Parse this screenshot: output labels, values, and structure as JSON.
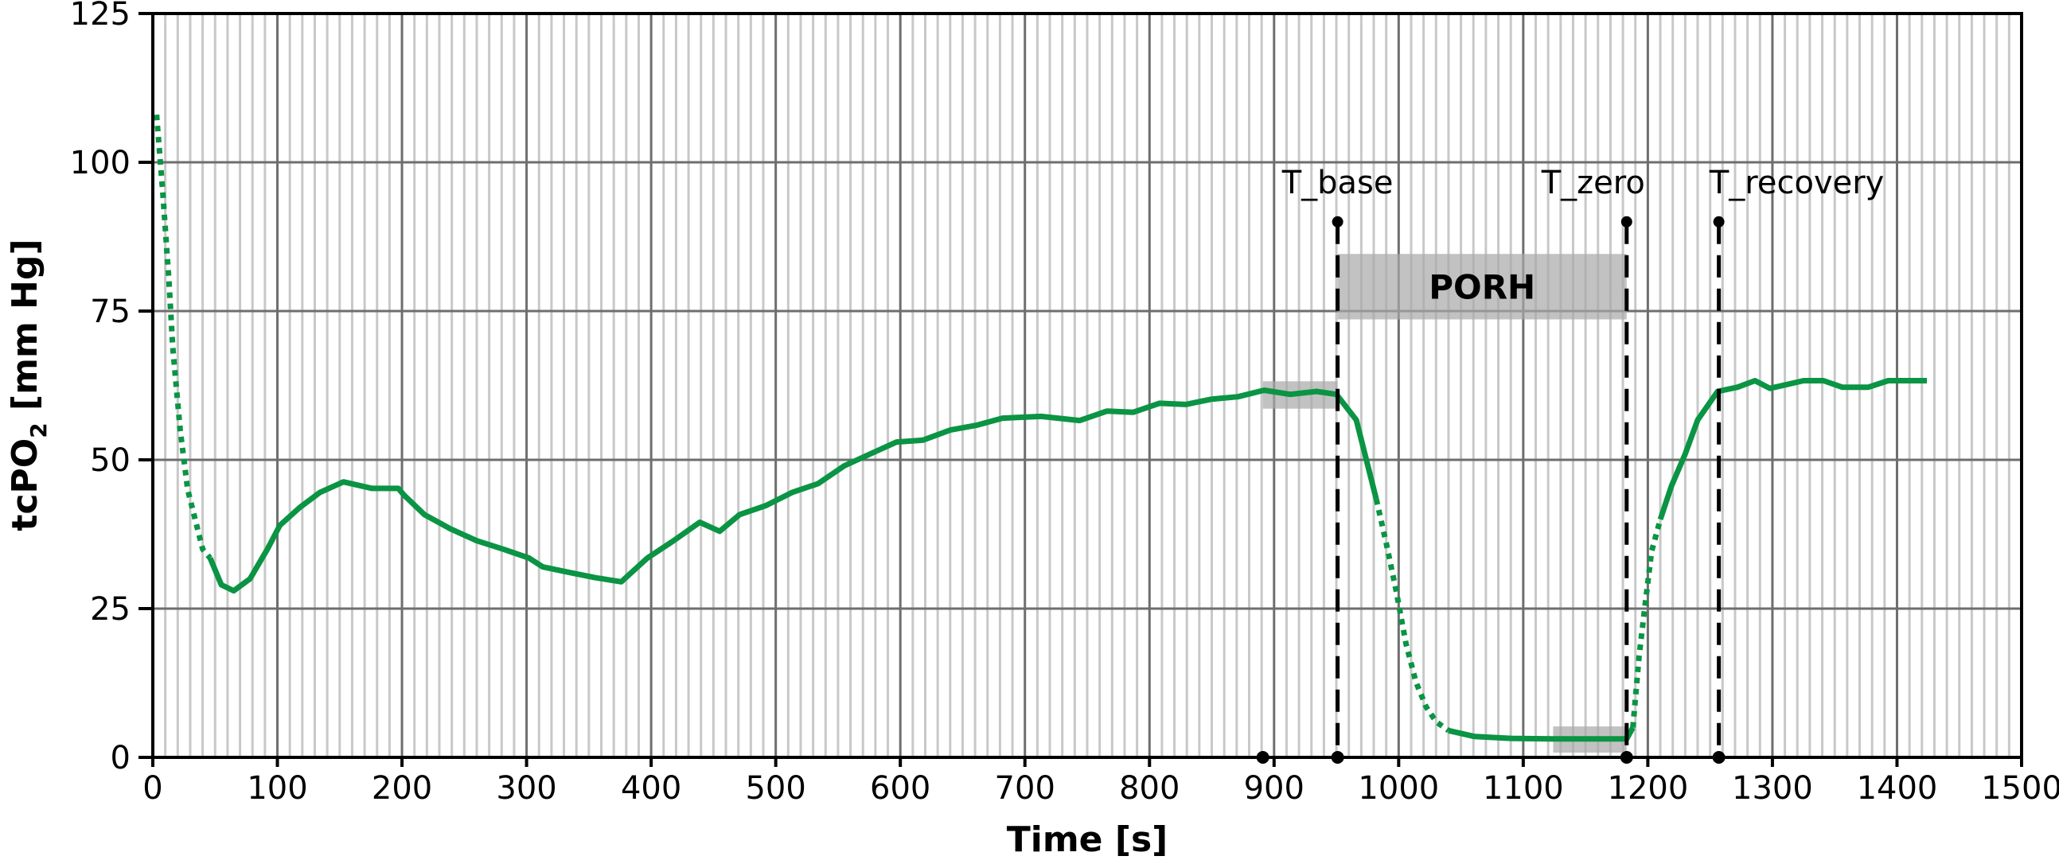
{
  "chart_data": {
    "type": "line",
    "xlabel": "Time [s]",
    "ylabel_parts": [
      "tcPO",
      "2",
      " [mm Hg]"
    ],
    "xlim": [
      0,
      1500
    ],
    "ylim": [
      0,
      125
    ],
    "xticks": [
      0,
      100,
      200,
      300,
      400,
      500,
      600,
      700,
      800,
      900,
      1000,
      1100,
      1200,
      1300,
      1400,
      1500
    ],
    "yticks": [
      0,
      25,
      50,
      75,
      100,
      125
    ],
    "grid": {
      "x_major": 100,
      "x_minor": 10,
      "y_major": 25
    },
    "colors": {
      "line": "#0a9444",
      "box": "#a8a8a8",
      "grid_major": "#6e6e6e",
      "grid_minor": "#c8c8c8"
    },
    "series": [
      {
        "name": "tcPO2",
        "segments": [
          {
            "style": "dotted",
            "points": [
              [
                3,
                108
              ],
              [
                8,
                95
              ],
              [
                13,
                80
              ],
              [
                16,
                69
              ],
              [
                22,
                55
              ],
              [
                28,
                45
              ],
              [
                40,
                35
              ],
              [
                46,
                33.5
              ]
            ]
          },
          {
            "style": "solid",
            "points": [
              [
                46,
                33.5
              ],
              [
                55,
                29
              ],
              [
                65,
                28
              ],
              [
                78,
                30
              ],
              [
                92,
                35
              ],
              [
                102,
                39
              ],
              [
                118,
                42
              ],
              [
                134,
                44.5
              ],
              [
                153,
                46.3
              ],
              [
                176,
                45.2
              ],
              [
                197,
                45.2
              ],
              [
                202,
                44
              ],
              [
                218,
                40.8
              ],
              [
                239,
                38.4
              ],
              [
                260,
                36.4
              ],
              [
                281,
                35
              ],
              [
                302,
                33.5
              ],
              [
                313,
                32
              ],
              [
                334,
                31.1
              ],
              [
                355,
                30.2
              ],
              [
                376,
                29.5
              ],
              [
                397,
                33.5
              ],
              [
                418,
                36.4
              ],
              [
                439,
                39.5
              ],
              [
                455,
                38
              ],
              [
                471,
                40.8
              ],
              [
                492,
                42.3
              ],
              [
                513,
                44.5
              ],
              [
                534,
                46
              ],
              [
                555,
                49
              ],
              [
                576,
                51
              ],
              [
                597,
                53
              ],
              [
                618,
                53.3
              ],
              [
                640,
                55
              ],
              [
                661,
                55.8
              ],
              [
                682,
                57
              ],
              [
                713,
                57.3
              ],
              [
                744,
                56.6
              ],
              [
                766,
                58.2
              ],
              [
                787,
                58
              ],
              [
                808,
                59.5
              ],
              [
                829,
                59.3
              ],
              [
                850,
                60.2
              ],
              [
                871,
                60.6
              ],
              [
                892,
                61.7
              ],
              [
                913,
                61
              ],
              [
                934,
                61.5
              ],
              [
                950,
                61
              ],
              [
                966,
                56.7
              ],
              [
                982,
                43.4
              ]
            ]
          },
          {
            "style": "dotted",
            "points": [
              [
                982,
                43.4
              ],
              [
                990,
                36
              ],
              [
                998,
                28
              ],
              [
                1006,
                19
              ],
              [
                1014,
                12.6
              ],
              [
                1022,
                8.5
              ],
              [
                1030,
                6
              ],
              [
                1040,
                4.5
              ]
            ]
          },
          {
            "style": "solid",
            "points": [
              [
                1040,
                4.5
              ],
              [
                1061,
                3.5
              ],
              [
                1090,
                3.2
              ],
              [
                1124,
                3.1
              ],
              [
                1183,
                3.1
              ],
              [
                1188,
                5
              ]
            ]
          },
          {
            "style": "dotted",
            "points": [
              [
                1188,
                5
              ],
              [
                1193,
                17
              ],
              [
                1198,
                26
              ],
              [
                1203,
                34.6
              ],
              [
                1210,
                40
              ]
            ]
          },
          {
            "style": "solid",
            "points": [
              [
                1210,
                40
              ],
              [
                1219,
                45.6
              ],
              [
                1230,
                51
              ],
              [
                1240,
                56.7
              ],
              [
                1256,
                61.5
              ],
              [
                1272,
                62.2
              ],
              [
                1286,
                63.3
              ],
              [
                1298,
                62
              ],
              [
                1325,
                63.3
              ],
              [
                1341,
                63.3
              ],
              [
                1356,
                62.2
              ],
              [
                1377,
                62.2
              ],
              [
                1393,
                63.3
              ],
              [
                1424,
                63.3
              ]
            ]
          }
        ]
      }
    ],
    "boxes": [
      {
        "name": "baseline-window",
        "x": [
          891,
          951
        ],
        "y": [
          58.6,
          63.2
        ]
      },
      {
        "name": "porh-box",
        "x": [
          951,
          1183
        ],
        "y": [
          73.6,
          84.6
        ],
        "label": "PORH"
      },
      {
        "name": "zero-window",
        "x": [
          1124,
          1183
        ],
        "y": [
          0.8,
          5.2
        ]
      }
    ],
    "markers": [
      {
        "label": "T_base",
        "x": 951,
        "top": 90
      },
      {
        "label": "T_zero",
        "x": 1183,
        "top": 90
      },
      {
        "label": "T_recovery",
        "x": 1257,
        "top": 90
      }
    ],
    "extra_points": [
      {
        "x": 891,
        "y": 0
      }
    ]
  }
}
